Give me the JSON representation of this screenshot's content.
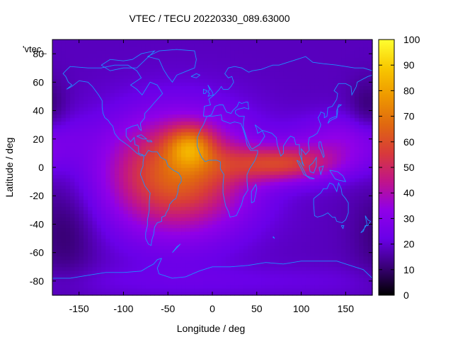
{
  "chart_data": {
    "type": "heatmap",
    "title": "VTEC / TECU 20220330_089.63000",
    "xlabel": "Longitude / deg",
    "ylabel": "Latitude / deg",
    "xlim": [
      -180,
      180
    ],
    "ylim": [
      -90,
      90
    ],
    "x_ticks": [
      -150,
      -100,
      -50,
      0,
      50,
      100,
      150
    ],
    "y_ticks": [
      -80,
      -60,
      -40,
      -20,
      0,
      20,
      40,
      60,
      80
    ],
    "colorbar": {
      "range": [
        0,
        100
      ],
      "ticks": [
        0,
        10,
        20,
        30,
        40,
        50,
        60,
        70,
        80,
        90,
        100
      ],
      "palette": [
        "#000000",
        "#3a0078",
        "#6a00e8",
        "#9000e8",
        "#c0148a",
        "#d83a3a",
        "#e06810",
        "#ee9800",
        "#f8c800",
        "#ffff30"
      ]
    },
    "legend": {
      "label": "'vtec_",
      "placement": "top-left"
    },
    "coastline_color": "#1e90ff",
    "field": {
      "background_tecu": 18,
      "components": [
        {
          "lon": -40,
          "lat": -5,
          "sigma_lon": 55,
          "sigma_lat": 28,
          "amp": 48
        },
        {
          "lon": -25,
          "lat": 15,
          "sigma_lon": 18,
          "sigma_lat": 10,
          "amp": 28
        },
        {
          "lon": 80,
          "lat": 3,
          "sigma_lon": 45,
          "sigma_lat": 9,
          "amp": 35
        },
        {
          "lon": 150,
          "lat": 20,
          "sigma_lon": 40,
          "sigma_lat": 12,
          "amp": 14
        },
        {
          "lon": -165,
          "lat": -45,
          "sigma_lon": 25,
          "sigma_lat": 25,
          "amp": -8
        },
        {
          "lon": 175,
          "lat": 40,
          "sigma_lon": 15,
          "sigma_lat": 15,
          "amp": -8
        },
        {
          "lon": 0,
          "lat": -80,
          "sigma_lon": 200,
          "sigma_lat": 8,
          "amp": 4
        }
      ]
    }
  }
}
